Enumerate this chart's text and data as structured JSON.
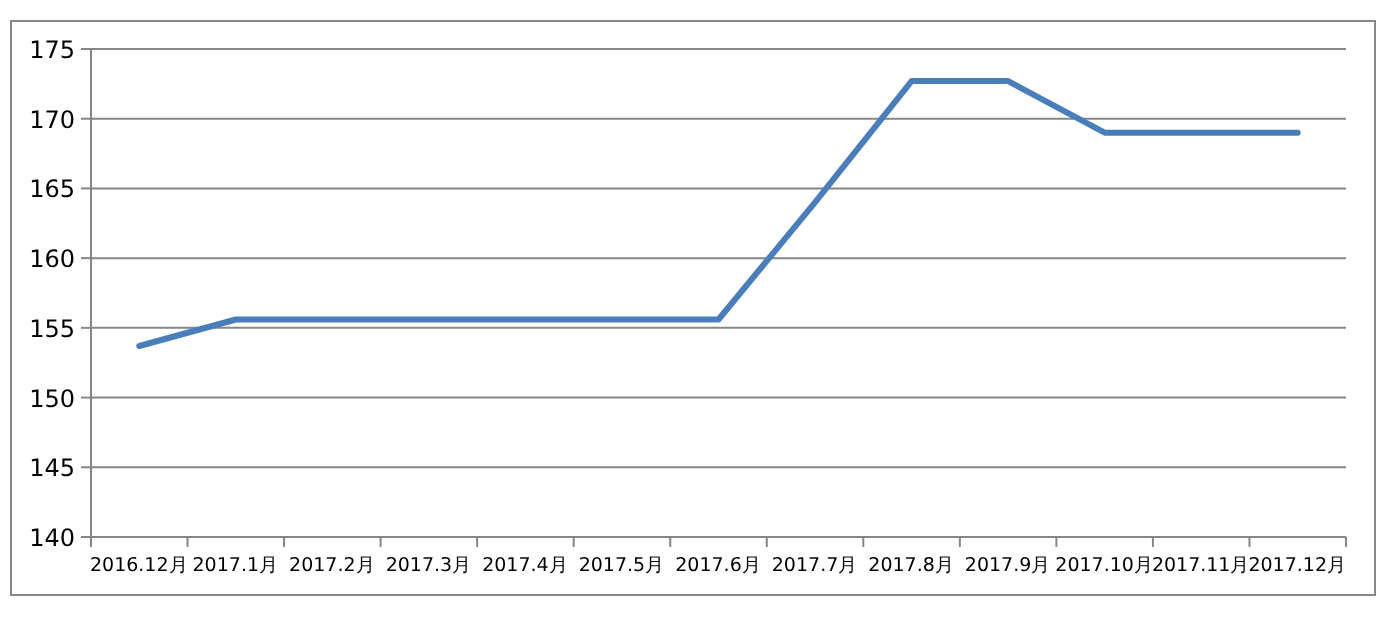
{
  "chart_data": {
    "type": "line",
    "categories": [
      "2016.12月",
      "2017.1月",
      "2017.2月",
      "2017.3月",
      "2017.4月",
      "2017.5月",
      "2017.6月",
      "2017.7月",
      "2017.8月",
      "2017.9月",
      "2017.10月",
      "2017.11月",
      "2017.12月"
    ],
    "values": [
      153.7,
      155.6,
      155.6,
      155.6,
      155.6,
      155.6,
      155.6,
      164,
      172.7,
      172.7,
      169,
      169,
      169
    ],
    "color": "#4a7ebb",
    "ylim": [
      140,
      175
    ],
    "yticks": [
      140,
      145,
      150,
      155,
      160,
      165,
      170,
      175
    ],
    "grid": "y",
    "legend": false,
    "marker": "none",
    "line_style": "solid"
  }
}
